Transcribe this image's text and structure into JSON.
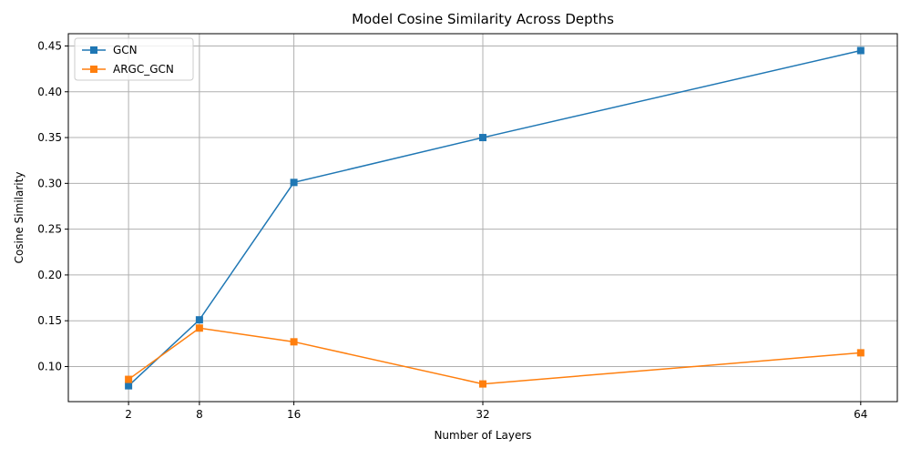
{
  "colors": {
    "gcn": "#1f77b4",
    "argc_gcn": "#ff7f0e",
    "grid": "#b0b0b0",
    "axis": "#000000"
  },
  "chart_data": {
    "type": "line",
    "title": "Model Cosine Similarity Across Depths",
    "xlabel": "Number of Layers",
    "ylabel": "Cosine Similarity",
    "x": [
      2,
      8,
      16,
      32,
      64
    ],
    "xticks": [
      2,
      8,
      16,
      32,
      64
    ],
    "xlim": [
      -3.1,
      67.1
    ],
    "yticks": [
      0.1,
      0.15,
      0.2,
      0.25,
      0.3,
      0.35,
      0.4,
      0.45
    ],
    "ytick_labels": [
      "0.10",
      "0.15",
      "0.20",
      "0.25",
      "0.30",
      "0.35",
      "0.40",
      "0.45"
    ],
    "ylim": [
      0.0617,
      0.4634
    ],
    "grid": true,
    "legend_position": "top-left",
    "marker": "square",
    "series": [
      {
        "name": "GCN",
        "color_key": "gcn",
        "values": [
          0.079,
          0.151,
          0.301,
          0.35,
          0.445
        ]
      },
      {
        "name": "ARGC_GCN",
        "color_key": "argc_gcn",
        "values": [
          0.086,
          0.142,
          0.127,
          0.081,
          0.115
        ]
      }
    ]
  }
}
